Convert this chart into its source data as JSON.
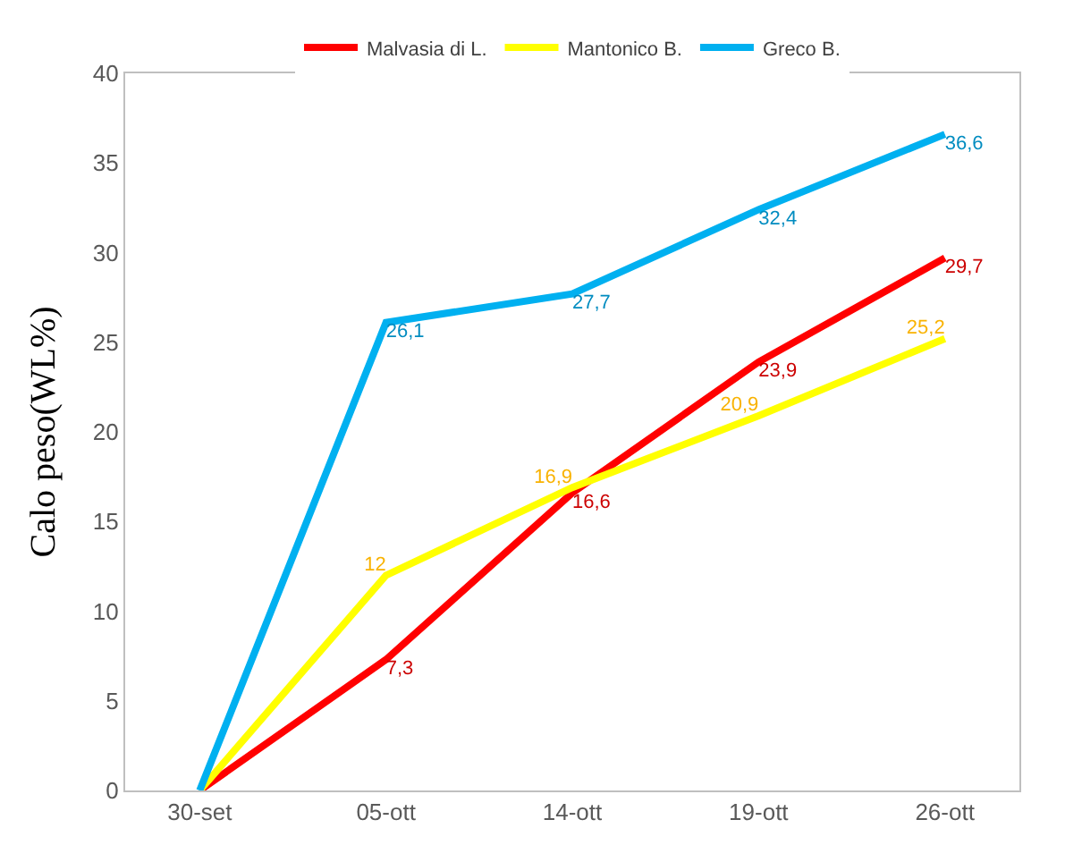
{
  "chart_data": {
    "type": "line",
    "ylabel": "Calo peso(WL%)",
    "categories": [
      "30-set",
      "05-ott",
      "14-ott",
      "19-ott",
      "26-ott"
    ],
    "series": [
      {
        "name": "Malvasia di L.",
        "color": "#ff0000",
        "values": [
          0,
          7.3,
          16.6,
          23.9,
          29.7
        ],
        "value_labels": [
          null,
          "7,3",
          "16,6",
          "23,9",
          "29,7"
        ]
      },
      {
        "name": "Mantonico B.",
        "color": "#ffff00",
        "values": [
          0,
          12,
          16.9,
          20.9,
          25.2
        ],
        "value_labels": [
          null,
          "12",
          "16,9",
          "20,9",
          "25,2"
        ]
      },
      {
        "name": "Greco B.",
        "color": "#00b0f0",
        "values": [
          0,
          26.1,
          27.7,
          32.4,
          36.6
        ],
        "value_labels": [
          null,
          "26,1",
          "27,7",
          "32,4",
          "36,6"
        ]
      }
    ],
    "ylim": [
      0,
      40
    ],
    "yticks": [
      0,
      5,
      10,
      15,
      20,
      25,
      30,
      35,
      40
    ],
    "legend": "top",
    "marker": "none",
    "line_style": "solid"
  }
}
